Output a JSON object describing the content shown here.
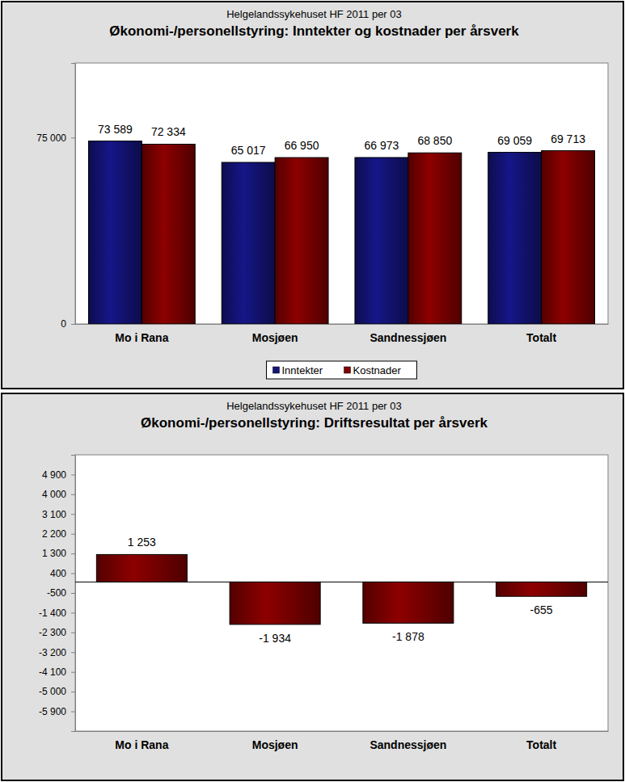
{
  "chart_data": [
    {
      "type": "bar",
      "subtitle": "Helgelandssykehuset HF 2011 per 03",
      "title": "Økonomi-/personellstyring: Inntekter og kostnader per årsverk",
      "categories": [
        "Mo i Rana",
        "Mosjøen",
        "Sandnessjøen",
        "Totalt"
      ],
      "series": [
        {
          "name": "Inntekter",
          "color": "#14147a",
          "values": [
            73589,
            65017,
            66973,
            69059
          ],
          "value_labels": [
            "73 589",
            "65 017",
            "66 973",
            "69 059"
          ]
        },
        {
          "name": "Kostnader",
          "color": "#800000",
          "values": [
            72334,
            66950,
            68850,
            69713
          ],
          "value_labels": [
            "72 334",
            "66 950",
            "68 850",
            "69 713"
          ]
        }
      ],
      "ylim": [
        0,
        105000
      ],
      "yticks": [
        0,
        {
          "value": 75000,
          "label": "75 000"
        }
      ],
      "data_labels": true,
      "legend": "bottom"
    },
    {
      "type": "bar",
      "subtitle": "Helgelandssykehuset HF 2011 per 03",
      "title": "Økonomi-/personellstyring: Driftsresultat per årsverk",
      "categories": [
        "Mo i Rana",
        "Mosjøen",
        "Sandnessjøen",
        "Totalt"
      ],
      "values": [
        1253,
        -1934,
        -1878,
        -655
      ],
      "value_labels": [
        "1 253",
        "-1 934",
        "-1 878",
        "-655"
      ],
      "color": "#800000",
      "ylim": [
        -6800,
        5800
      ],
      "yticks": [
        {
          "value": 4900,
          "label": "4 900"
        },
        {
          "value": 4000,
          "label": "4 000"
        },
        {
          "value": 3100,
          "label": "3 100"
        },
        {
          "value": 2200,
          "label": "2 200"
        },
        {
          "value": 1300,
          "label": "1 300"
        },
        400,
        -500,
        {
          "value": -1400,
          "label": "-1 400"
        },
        {
          "value": -2300,
          "label": "-2 300"
        },
        {
          "value": -3200,
          "label": "-3 200"
        },
        {
          "value": -4100,
          "label": "-4 100"
        },
        {
          "value": -5000,
          "label": "-5 000"
        },
        {
          "value": -5900,
          "label": "-5 900"
        }
      ],
      "data_labels": true
    }
  ]
}
